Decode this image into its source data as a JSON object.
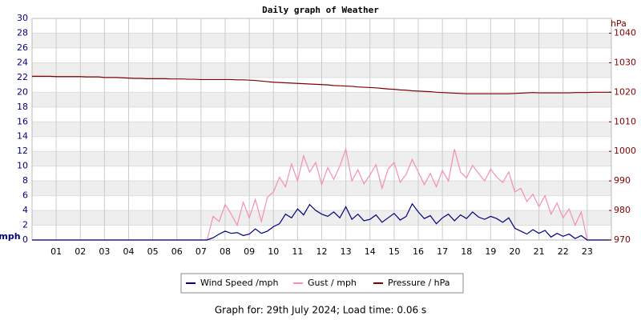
{
  "chart_data": {
    "type": "line",
    "title": "Daily graph of Weather",
    "ylabel": "mph",
    "y2label": "hPa",
    "footer": "Graph for: 29th July 2024; Load time: 0.06 s",
    "xlim": [
      0,
      24
    ],
    "ylim": [
      0,
      30
    ],
    "y2lim": [
      970,
      1045
    ],
    "xticks": [
      {
        "value": 1,
        "label": "01"
      },
      {
        "value": 2,
        "label": "02"
      },
      {
        "value": 3,
        "label": "03"
      },
      {
        "value": 4,
        "label": "04"
      },
      {
        "value": 5,
        "label": "05"
      },
      {
        "value": 6,
        "label": "06"
      },
      {
        "value": 7,
        "label": "07"
      },
      {
        "value": 8,
        "label": "08"
      },
      {
        "value": 9,
        "label": "09"
      },
      {
        "value": 10,
        "label": "10"
      },
      {
        "value": 11,
        "label": "11"
      },
      {
        "value": 12,
        "label": "12"
      },
      {
        "value": 13,
        "label": "13"
      },
      {
        "value": 14,
        "label": "14"
      },
      {
        "value": 15,
        "label": "15"
      },
      {
        "value": 16,
        "label": "16"
      },
      {
        "value": 17,
        "label": "17"
      },
      {
        "value": 18,
        "label": "18"
      },
      {
        "value": 19,
        "label": "19"
      },
      {
        "value": 20,
        "label": "20"
      },
      {
        "value": 21,
        "label": "21"
      },
      {
        "value": 22,
        "label": "22"
      },
      {
        "value": 23,
        "label": "23"
      }
    ],
    "yticks": [
      0,
      2,
      4,
      6,
      8,
      10,
      12,
      14,
      16,
      18,
      20,
      22,
      24,
      26,
      28,
      30
    ],
    "y2ticks": [
      970,
      980,
      990,
      1000,
      1010,
      1020,
      1030,
      1040
    ],
    "grid": true,
    "x": [
      0,
      0.25,
      0.5,
      0.75,
      1,
      1.25,
      1.5,
      1.75,
      2,
      2.25,
      2.5,
      2.75,
      3,
      3.25,
      3.5,
      3.75,
      4,
      4.25,
      4.5,
      4.75,
      5,
      5.25,
      5.5,
      5.75,
      6,
      6.25,
      6.5,
      6.75,
      7,
      7.25,
      7.5,
      7.75,
      8,
      8.25,
      8.5,
      8.75,
      9,
      9.25,
      9.5,
      9.75,
      10,
      10.25,
      10.5,
      10.75,
      11,
      11.25,
      11.5,
      11.75,
      12,
      12.25,
      12.5,
      12.75,
      13,
      13.25,
      13.5,
      13.75,
      14,
      14.25,
      14.5,
      14.75,
      15,
      15.25,
      15.5,
      15.75,
      16,
      16.25,
      16.5,
      16.75,
      17,
      17.25,
      17.5,
      17.75,
      18,
      18.25,
      18.5,
      18.75,
      19,
      19.25,
      19.5,
      19.75,
      20,
      20.25,
      20.5,
      20.75,
      21,
      21.25,
      21.5,
      21.75,
      22,
      22.25,
      22.5,
      22.75,
      23,
      23.25,
      23.5,
      23.75,
      24
    ],
    "series": [
      {
        "name": "Wind Speed /mph",
        "color": "#000080",
        "values": [
          0,
          0,
          0,
          0,
          0,
          0,
          0,
          0,
          0,
          0,
          0,
          0,
          0,
          0,
          0,
          0,
          0,
          0,
          0,
          0,
          0,
          0,
          0,
          0,
          0,
          0,
          0,
          0,
          0,
          0,
          0.3,
          0.8,
          1.2,
          0.9,
          1.0,
          0.6,
          0.8,
          1.5,
          0.9,
          1.2,
          1.8,
          2.2,
          3.5,
          3.0,
          4.2,
          3.4,
          4.8,
          4.0,
          3.5,
          3.2,
          3.8,
          3.0,
          4.5,
          2.8,
          3.5,
          2.6,
          2.8,
          3.4,
          2.4,
          3.0,
          3.6,
          2.7,
          3.2,
          4.9,
          3.8,
          2.9,
          3.3,
          2.2,
          3.0,
          3.5,
          2.6,
          3.4,
          2.9,
          3.8,
          3.1,
          2.8,
          3.2,
          2.9,
          2.4,
          3.0,
          1.6,
          1.2,
          0.8,
          1.4,
          0.9,
          1.3,
          0.4,
          0.9,
          0.5,
          0.8,
          0.2,
          0.6,
          0,
          0,
          0,
          0,
          0
        ]
      },
      {
        "name": "Gust / mph",
        "color": "#f58fb0",
        "values": [
          0,
          0,
          0,
          0,
          0,
          0,
          0,
          0,
          0,
          0,
          0,
          0,
          0,
          0,
          0,
          0,
          0,
          0,
          0,
          0,
          0,
          0,
          0,
          0,
          0,
          0,
          0,
          0,
          0,
          0,
          3.2,
          2.5,
          4.8,
          3.5,
          2.0,
          5.1,
          3.0,
          5.5,
          2.5,
          5.8,
          6.5,
          8.5,
          7.2,
          10.3,
          8.0,
          11.4,
          9.2,
          10.5,
          7.5,
          9.8,
          8.2,
          10.0,
          12.3,
          8.0,
          9.5,
          7.6,
          8.8,
          10.2,
          7.0,
          9.6,
          10.5,
          7.8,
          8.9,
          10.9,
          9.2,
          7.5,
          9.0,
          7.2,
          9.4,
          8.0,
          12.3,
          9.2,
          8.4,
          10.1,
          9.0,
          8.0,
          9.6,
          8.5,
          7.8,
          9.2,
          6.5,
          7.0,
          5.2,
          6.2,
          4.5,
          6.0,
          3.5,
          5.0,
          3.0,
          4.2,
          2.0,
          3.8,
          0,
          0,
          0,
          0,
          0
        ]
      },
      {
        "name": "Pressure / hPa",
        "color": "#800000",
        "axis": "y2",
        "values": [
          1025.4,
          1025.4,
          1025.4,
          1025.4,
          1025.3,
          1025.3,
          1025.3,
          1025.3,
          1025.3,
          1025.2,
          1025.2,
          1025.2,
          1025.0,
          1025.0,
          1025.0,
          1024.9,
          1024.8,
          1024.7,
          1024.7,
          1024.6,
          1024.6,
          1024.6,
          1024.6,
          1024.5,
          1024.5,
          1024.5,
          1024.4,
          1024.4,
          1024.3,
          1024.3,
          1024.3,
          1024.3,
          1024.3,
          1024.3,
          1024.2,
          1024.2,
          1024.1,
          1024.0,
          1023.8,
          1023.6,
          1023.4,
          1023.3,
          1023.2,
          1023.1,
          1023.0,
          1022.9,
          1022.8,
          1022.7,
          1022.6,
          1022.5,
          1022.3,
          1022.2,
          1022.1,
          1022.0,
          1021.8,
          1021.7,
          1021.6,
          1021.5,
          1021.3,
          1021.1,
          1021.0,
          1020.8,
          1020.7,
          1020.5,
          1020.4,
          1020.3,
          1020.2,
          1020.0,
          1019.9,
          1019.8,
          1019.7,
          1019.6,
          1019.5,
          1019.5,
          1019.5,
          1019.5,
          1019.5,
          1019.5,
          1019.5,
          1019.5,
          1019.6,
          1019.7,
          1019.8,
          1019.9,
          1019.8,
          1019.8,
          1019.8,
          1019.8,
          1019.8,
          1019.8,
          1019.9,
          1019.9,
          1019.9,
          1020.0,
          1020.0,
          1020.0,
          1020.0
        ]
      }
    ]
  }
}
